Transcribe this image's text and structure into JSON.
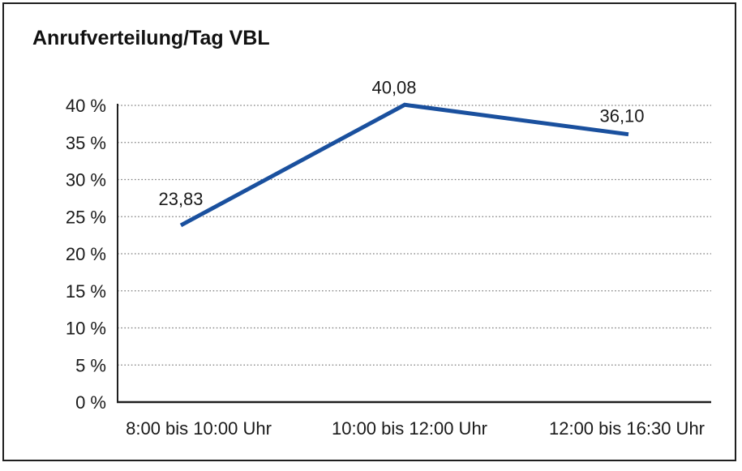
{
  "chart": {
    "title": "Anrufverteilung/Tag VBL"
  },
  "chart_data": {
    "type": "line",
    "title": "Anrufverteilung/Tag VBL",
    "categories": [
      "8:00 bis 10:00 Uhr",
      "10:00 bis 12:00 Uhr",
      "12:00 bis 16:30 Uhr"
    ],
    "values": [
      23.83,
      40.08,
      36.1
    ],
    "point_labels": [
      "23,83",
      "40,08",
      "36,10"
    ],
    "xlabel": "",
    "ylabel": "",
    "ylim": [
      0,
      40
    ],
    "ytick_step": 5,
    "ytick_labels": [
      "0 %",
      "5 %",
      "10 %",
      "15 %",
      "20 %",
      "25 %",
      "30 %",
      "35 %",
      "40 %"
    ],
    "grid": "dotted-horizontal",
    "legend_position": "none",
    "line_color": "#1a509e",
    "line_width": 5,
    "axis_color": "#1f1f1f",
    "grid_color": "#7d7d7d",
    "text_color": "#1a1a1a"
  }
}
